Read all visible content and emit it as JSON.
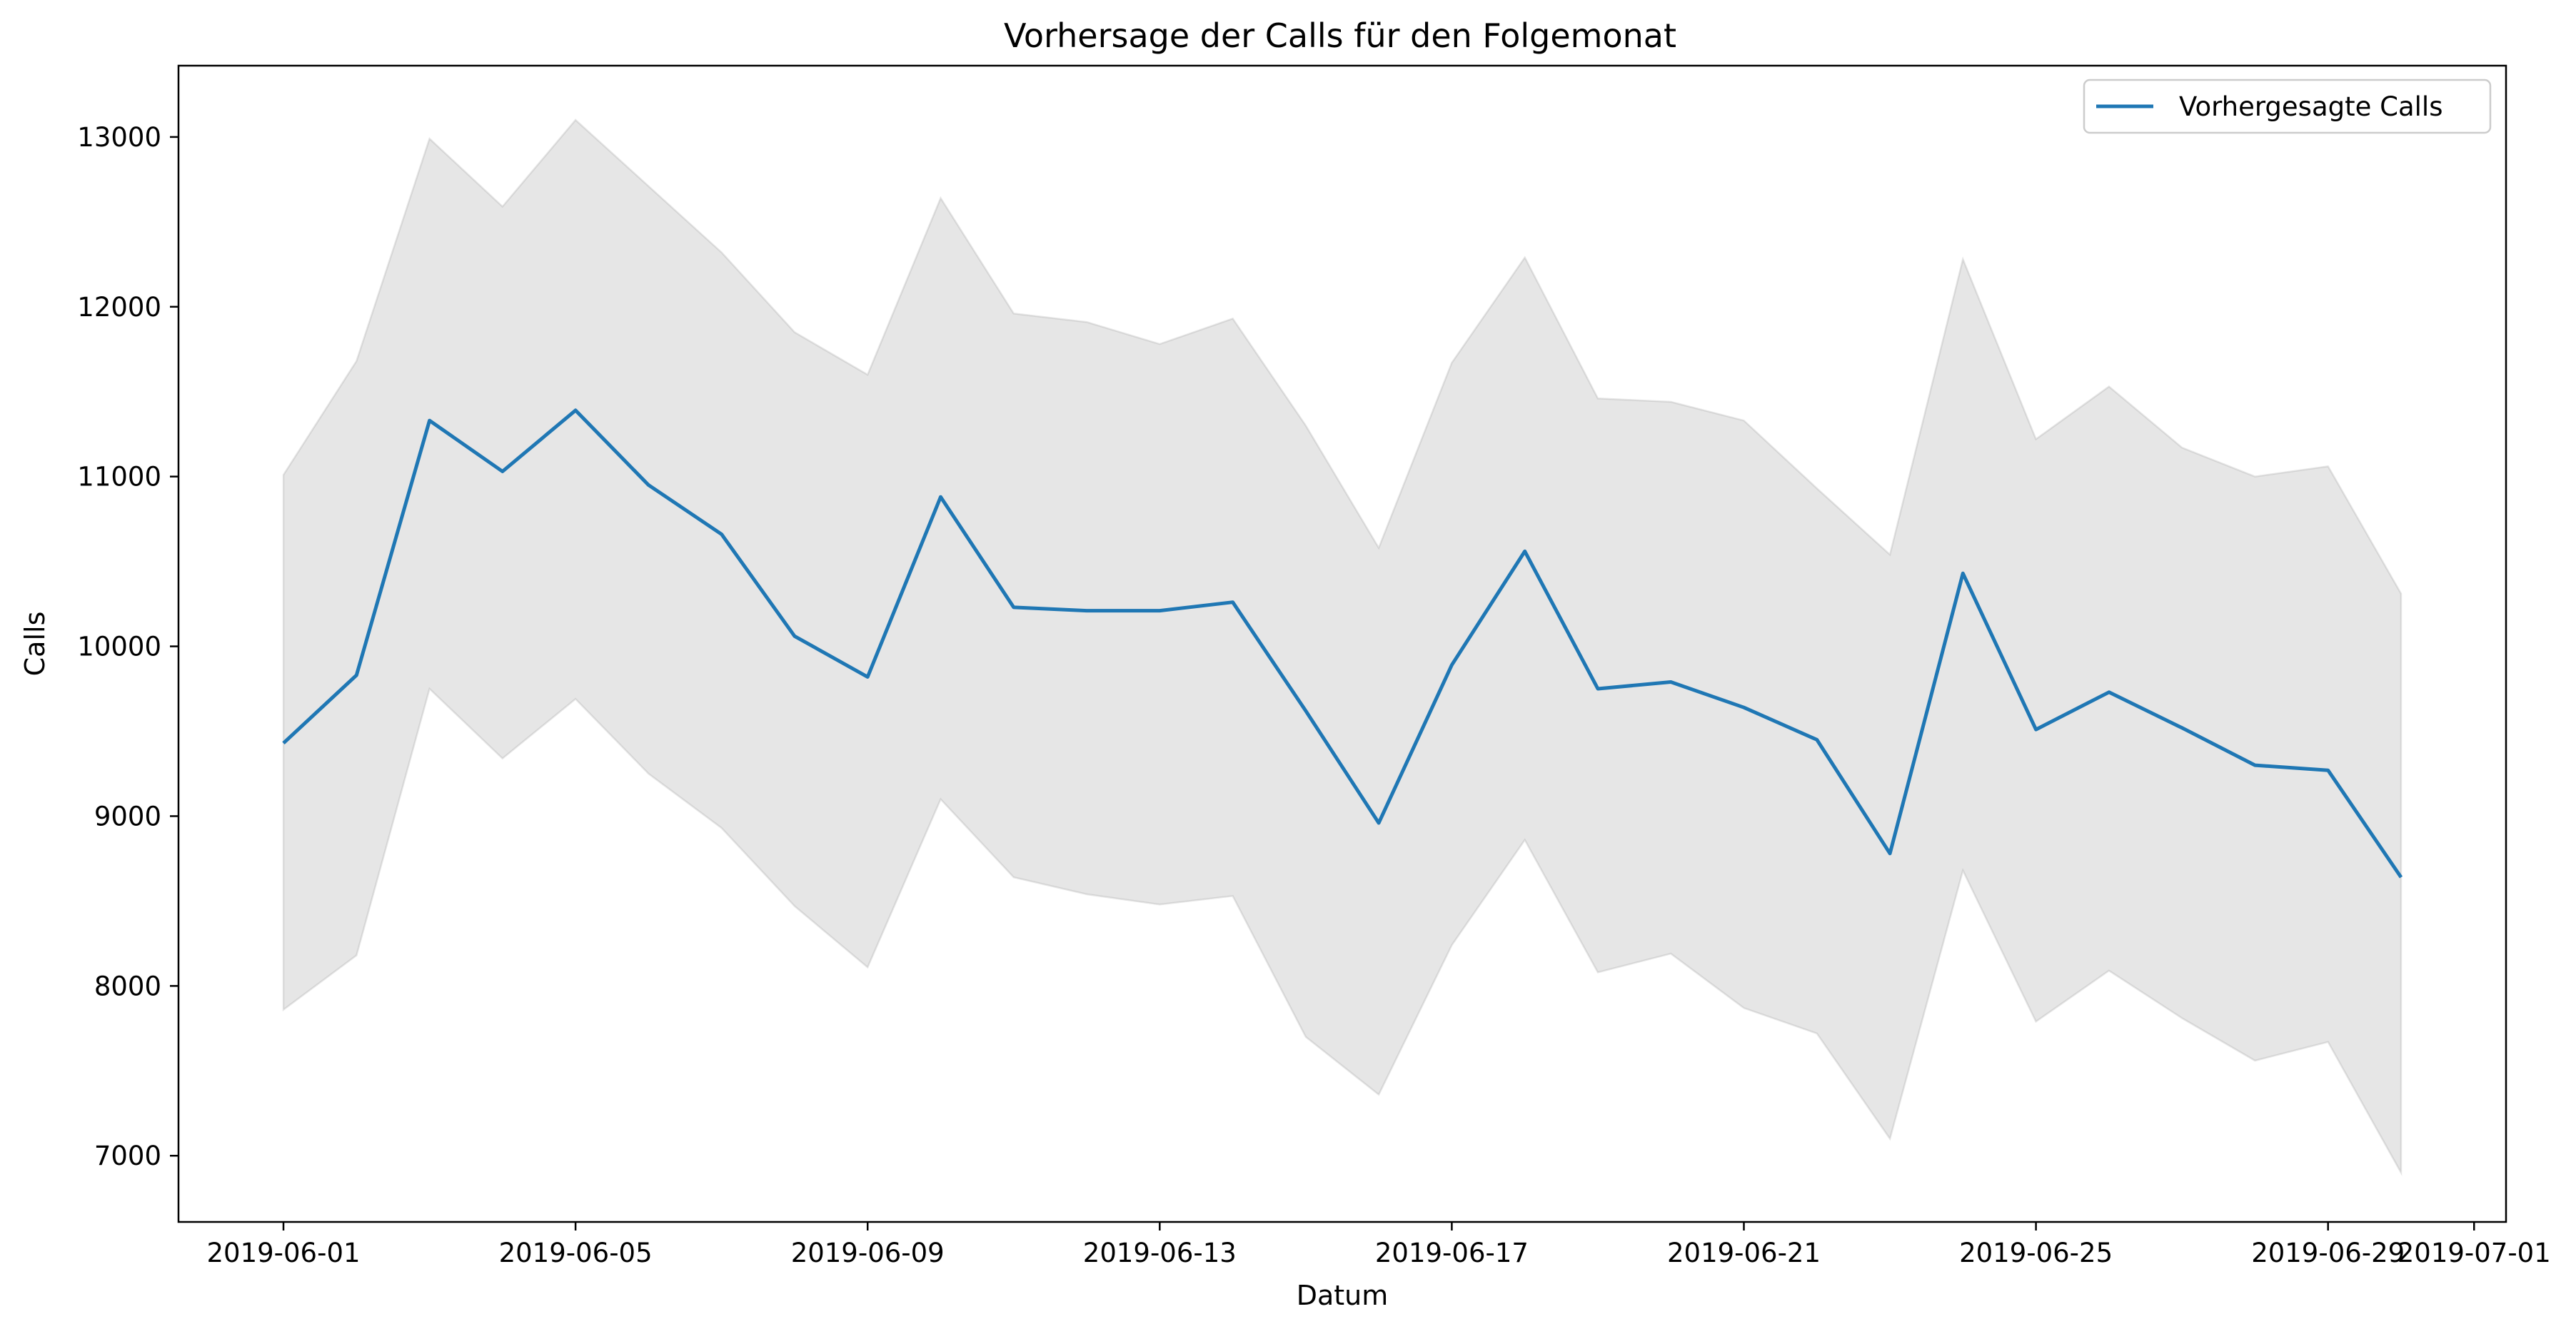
{
  "chart_data": {
    "type": "line",
    "title": "Vorhersage der Calls für den Folgemonat",
    "xlabel": "Datum",
    "ylabel": "Calls",
    "x": [
      "2019-06-01",
      "2019-06-02",
      "2019-06-03",
      "2019-06-04",
      "2019-06-05",
      "2019-06-06",
      "2019-06-07",
      "2019-06-08",
      "2019-06-09",
      "2019-06-10",
      "2019-06-11",
      "2019-06-12",
      "2019-06-13",
      "2019-06-14",
      "2019-06-15",
      "2019-06-16",
      "2019-06-17",
      "2019-06-18",
      "2019-06-19",
      "2019-06-20",
      "2019-06-21",
      "2019-06-22",
      "2019-06-23",
      "2019-06-24",
      "2019-06-25",
      "2019-06-26",
      "2019-06-27",
      "2019-06-28",
      "2019-06-29",
      "2019-06-30"
    ],
    "series": [
      {
        "name": "Vorhergesagte Calls",
        "color": "#1f77b4",
        "values": [
          9430,
          9830,
          11330,
          11030,
          11390,
          10950,
          10660,
          10060,
          9820,
          10880,
          10230,
          10210,
          10210,
          10260,
          9620,
          8960,
          9890,
          10560,
          9750,
          9790,
          9640,
          9450,
          8780,
          10430,
          9510,
          9730,
          9520,
          9300,
          9270,
          8640
        ]
      }
    ],
    "band": {
      "color": "#808080",
      "upper": [
        11010,
        11680,
        12990,
        12590,
        13100,
        12710,
        12320,
        11850,
        11600,
        12640,
        11960,
        11910,
        11780,
        11930,
        11300,
        10580,
        11670,
        12290,
        11460,
        11440,
        11330,
        10930,
        10540,
        12280,
        11220,
        11530,
        11170,
        11000,
        11060,
        10310
      ],
      "lower": [
        7860,
        8180,
        9750,
        9340,
        9690,
        9250,
        8930,
        8470,
        8110,
        9100,
        8640,
        8540,
        8480,
        8530,
        7700,
        7360,
        8240,
        8860,
        8080,
        8190,
        7870,
        7720,
        7100,
        8680,
        7790,
        8090,
        7810,
        7560,
        7670,
        6900
      ]
    },
    "xticks": [
      "2019-06-01",
      "2019-06-05",
      "2019-06-09",
      "2019-06-13",
      "2019-06-17",
      "2019-06-21",
      "2019-06-25",
      "2019-06-29",
      "2019-07-01"
    ],
    "yticks": [
      7000,
      8000,
      9000,
      10000,
      11000,
      12000,
      13000
    ],
    "xlim": [
      "2019-05-30T13:30",
      "2019-07-01T10:30"
    ],
    "ylim": [
      6610,
      13420
    ],
    "grid": false,
    "legend_position": "top-right"
  }
}
